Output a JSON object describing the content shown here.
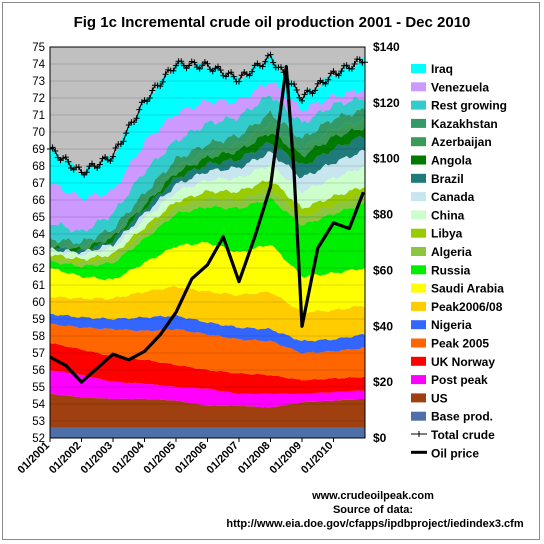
{
  "chart_data": {
    "type": "area",
    "title": "Fig 1c Incremental crude oil production 2001 - Dec 2010",
    "left_axis": {
      "ylim": [
        52,
        75
      ],
      "ticks": [
        52,
        53,
        54,
        55,
        56,
        57,
        58,
        59,
        60,
        61,
        62,
        63,
        64,
        65,
        66,
        67,
        68,
        69,
        70,
        71,
        72,
        73,
        74,
        75
      ]
    },
    "right_axis": {
      "ylim": [
        0,
        140
      ],
      "ticks": [
        "$0",
        "$20",
        "$40",
        "$60",
        "$80",
        "$100",
        "$120",
        "$140"
      ]
    },
    "x_ticks": [
      "01/2001",
      "01/2002",
      "01/2003",
      "01/2004",
      "01/2005",
      "01/2006",
      "01/2007",
      "01/2008",
      "01/2009",
      "01/2010"
    ],
    "x_range": [
      2001.0,
      2011.0
    ],
    "grid": true,
    "legend_position": "right",
    "layers": [
      {
        "name": "Base prod.",
        "color": "#4f6fa8",
        "values": [
          52.6,
          52.6,
          52.6,
          52.6,
          52.6,
          52.6,
          52.6,
          52.6,
          52.6,
          52.6,
          52.6
        ]
      },
      {
        "name": "US",
        "color": "#a04010",
        "values": [
          54.6,
          54.4,
          54.3,
          54.3,
          54.2,
          53.9,
          53.9,
          53.8,
          54.1,
          54.2,
          54.3
        ]
      },
      {
        "name": "Post peak",
        "color": "#ff00ff",
        "values": [
          56.0,
          55.7,
          55.3,
          55.2,
          55.0,
          54.9,
          54.6,
          54.6,
          54.6,
          54.7,
          54.8
        ]
      },
      {
        "name": "UK Norway",
        "color": "#ff0000",
        "values": [
          57.6,
          57.2,
          56.8,
          56.6,
          56.3,
          56.0,
          55.8,
          55.7,
          55.4,
          55.5,
          55.6
        ]
      },
      {
        "name": "Peak 2005",
        "color": "#ff6600",
        "values": [
          58.7,
          58.5,
          58.4,
          58.3,
          58.4,
          58.1,
          57.8,
          57.7,
          57.0,
          57.1,
          57.3
        ]
      },
      {
        "name": "Nigeria",
        "color": "#3366ff",
        "values": [
          59.3,
          59.1,
          59.0,
          59.1,
          59.2,
          58.8,
          58.5,
          58.4,
          57.7,
          57.8,
          58.1
        ]
      },
      {
        "name": "Peak2006/08",
        "color": "#ffcc00",
        "values": [
          60.3,
          60.2,
          60.2,
          60.6,
          60.9,
          60.6,
          60.4,
          60.6,
          59.4,
          59.5,
          59.8
        ]
      },
      {
        "name": "Saudi Arabia",
        "color": "#ffff00",
        "values": [
          62.0,
          61.5,
          61.3,
          62.3,
          63.3,
          63.5,
          62.9,
          63.4,
          61.5,
          61.7,
          62.0
        ]
      },
      {
        "name": "Russia",
        "color": "#00ee00",
        "values": [
          62.4,
          62.1,
          62.3,
          63.7,
          65.2,
          65.6,
          65.5,
          66.1,
          64.5,
          65.2,
          65.8
        ]
      },
      {
        "name": "Algeria",
        "color": "#8cc63f",
        "values": [
          62.6,
          62.3,
          62.6,
          64.1,
          65.6,
          66.1,
          66.0,
          66.7,
          65.0,
          65.7,
          66.3
        ]
      },
      {
        "name": "Libya",
        "color": "#99cc00",
        "values": [
          62.8,
          62.5,
          62.8,
          64.4,
          65.9,
          66.5,
          66.5,
          67.2,
          65.5,
          66.2,
          66.8
        ]
      },
      {
        "name": "China",
        "color": "#ccffcc",
        "values": [
          63.0,
          62.8,
          63.2,
          64.9,
          66.5,
          67.2,
          67.3,
          68.1,
          66.5,
          67.3,
          68.0
        ]
      },
      {
        "name": "Canada",
        "color": "#c8e6f0",
        "values": [
          63.1,
          62.9,
          63.4,
          65.2,
          66.9,
          67.7,
          67.9,
          68.8,
          67.3,
          68.2,
          68.9
        ]
      },
      {
        "name": "Brazil",
        "color": "#1f7a7a",
        "values": [
          63.2,
          63.0,
          63.6,
          65.5,
          67.3,
          68.1,
          68.4,
          69.4,
          68.0,
          69.0,
          69.8
        ]
      },
      {
        "name": "Angola",
        "color": "#007a00",
        "values": [
          63.2,
          63.1,
          63.8,
          65.7,
          67.6,
          68.5,
          68.9,
          70.0,
          68.6,
          69.7,
          70.3
        ]
      },
      {
        "name": "Azerbaijan",
        "color": "#3a9a5a",
        "values": [
          63.3,
          63.2,
          63.9,
          65.9,
          67.9,
          68.8,
          69.3,
          70.5,
          69.0,
          70.2,
          70.7
        ]
      },
      {
        "name": "Kazakhstan",
        "color": "#339966",
        "values": [
          63.7,
          63.5,
          64.3,
          66.4,
          68.4,
          69.3,
          69.8,
          71.1,
          69.6,
          70.8,
          71.3
        ]
      },
      {
        "name": "Rest growing",
        "color": "#33cccc",
        "values": [
          64.7,
          64.1,
          65.2,
          67.7,
          69.5,
          70.5,
          70.9,
          72.2,
          70.5,
          71.6,
          72.0
        ]
      },
      {
        "name": "Venezuela",
        "color": "#cc99ff",
        "values": [
          67.0,
          66.1,
          66.5,
          69.4,
          71.1,
          71.8,
          71.8,
          73.0,
          71.3,
          72.1,
          72.5
        ]
      },
      {
        "name": "Iraq",
        "color": "#00ffff",
        "values": [
          69.0,
          67.6,
          68.6,
          71.8,
          74.0,
          73.9,
          73.1,
          74.4,
          72.0,
          73.4,
          74.3
        ]
      }
    ],
    "total_crude": [
      69.0,
      67.6,
      68.6,
      71.8,
      74.0,
      73.9,
      73.1,
      74.4,
      72.0,
      73.4,
      74.3
    ],
    "oil_price": {
      "x": [
        2001.0,
        2001.5,
        2002.0,
        2002.5,
        2003.0,
        2003.5,
        2004.0,
        2004.5,
        2005.0,
        2005.5,
        2006.0,
        2006.5,
        2007.0,
        2007.5,
        2008.0,
        2008.5,
        2008.75,
        2009.0,
        2009.5,
        2010.0,
        2010.5,
        2010.95
      ],
      "y": [
        29,
        26,
        20,
        25,
        30,
        28,
        31,
        37,
        45,
        57,
        62,
        72,
        56,
        72,
        90,
        133,
        95,
        40,
        68,
        77,
        75,
        88
      ]
    },
    "legend": [
      "Iraq",
      "Venezuela",
      "Rest growing",
      "Kazakhstan",
      "Azerbaijan",
      "Angola",
      "Brazil",
      "Canada",
      "China",
      "Libya",
      "Algeria",
      "Russia",
      "Saudi Arabia",
      "Peak2006/08",
      "Nigeria",
      "Peak 2005",
      "UK Norway",
      "Post peak",
      "US",
      "Base prod.",
      "Total crude",
      "Oil price"
    ]
  },
  "source": {
    "line1": "www.crudeoilpeak.com",
    "line2": "Source of data:",
    "line3": "http://www.eia.doe.gov/cfapps/ipdbproject/iedindex3.cfm"
  }
}
